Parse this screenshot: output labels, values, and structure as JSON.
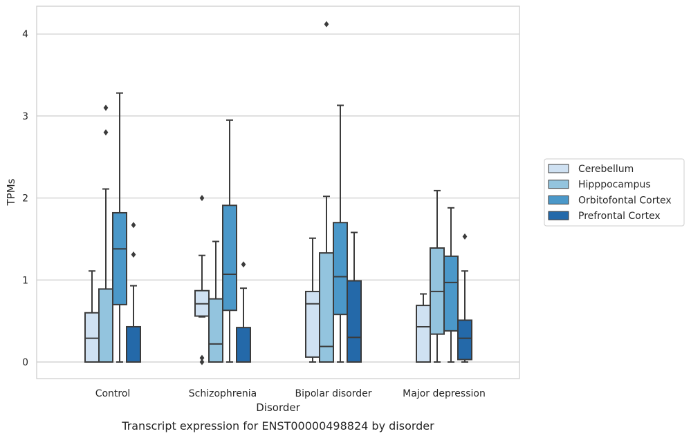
{
  "chart_data": {
    "type": "boxplot",
    "caption": "Transcript expression for ENST00000498824 by disorder",
    "xlabel": "Disorder",
    "ylabel": "TPMs",
    "ylim": [
      -0.2,
      4.33
    ],
    "yticks": [
      0,
      1,
      2,
      3,
      4
    ],
    "grid": "horizontal",
    "legend_position": "right",
    "categories": [
      "Control",
      "Schizophrenia",
      "Bipolar disorder",
      "Major depression"
    ],
    "series": [
      {
        "name": "Cerebellum",
        "color": "#cfe1f2",
        "boxes": [
          {
            "whislo": 0,
            "q1": 0,
            "med": 0.29,
            "q3": 0.6,
            "whishi": 1.11,
            "fliers": []
          },
          {
            "whislo": 0.55,
            "q1": 0.56,
            "med": 0.71,
            "q3": 0.87,
            "whishi": 1.3,
            "fliers": [
              2.0,
              0.05,
              0.0
            ]
          },
          {
            "whislo": 0,
            "q1": 0.06,
            "med": 0.71,
            "q3": 0.86,
            "whishi": 1.51,
            "fliers": []
          },
          {
            "whislo": 0,
            "q1": 0,
            "med": 0.43,
            "q3": 0.69,
            "whishi": 0.83,
            "fliers": []
          }
        ]
      },
      {
        "name": "Hipppocampus",
        "color": "#93c4de",
        "boxes": [
          {
            "whislo": 0,
            "q1": 0,
            "med": 0,
            "q3": 0.89,
            "whishi": 2.11,
            "fliers": [
              2.8,
              3.1
            ]
          },
          {
            "whislo": 0,
            "q1": 0,
            "med": 0.22,
            "q3": 0.77,
            "whishi": 1.47,
            "fliers": []
          },
          {
            "whislo": 0,
            "q1": 0,
            "med": 0.19,
            "q3": 1.33,
            "whishi": 2.02,
            "fliers": [
              4.12
            ]
          },
          {
            "whislo": 0,
            "q1": 0.34,
            "med": 0.86,
            "q3": 1.39,
            "whishi": 2.09,
            "fliers": []
          }
        ]
      },
      {
        "name": "Orbitofontal Cortex",
        "color": "#4b98c9",
        "boxes": [
          {
            "whislo": 0,
            "q1": 0.7,
            "med": 1.38,
            "q3": 1.82,
            "whishi": 3.28,
            "fliers": []
          },
          {
            "whislo": 0,
            "q1": 0.63,
            "med": 1.07,
            "q3": 1.91,
            "whishi": 2.95,
            "fliers": []
          },
          {
            "whislo": 0,
            "q1": 0.58,
            "med": 1.04,
            "q3": 1.7,
            "whishi": 3.13,
            "fliers": []
          },
          {
            "whislo": 0,
            "q1": 0.38,
            "med": 0.97,
            "q3": 1.29,
            "whishi": 1.88,
            "fliers": []
          }
        ]
      },
      {
        "name": "Prefrontal Cortex",
        "color": "#2469a9",
        "boxes": [
          {
            "whislo": 0,
            "q1": 0,
            "med": 0,
            "q3": 0.43,
            "whishi": 0.93,
            "fliers": [
              1.31,
              1.67
            ]
          },
          {
            "whislo": 0,
            "q1": 0,
            "med": 0,
            "q3": 0.42,
            "whishi": 0.9,
            "fliers": [
              1.19
            ]
          },
          {
            "whislo": 0,
            "q1": 0,
            "med": 0.3,
            "q3": 0.99,
            "whishi": 1.58,
            "fliers": []
          },
          {
            "whislo": 0,
            "q1": 0.03,
            "med": 0.29,
            "q3": 0.51,
            "whishi": 1.11,
            "fliers": [
              1.53
            ]
          }
        ]
      }
    ]
  }
}
